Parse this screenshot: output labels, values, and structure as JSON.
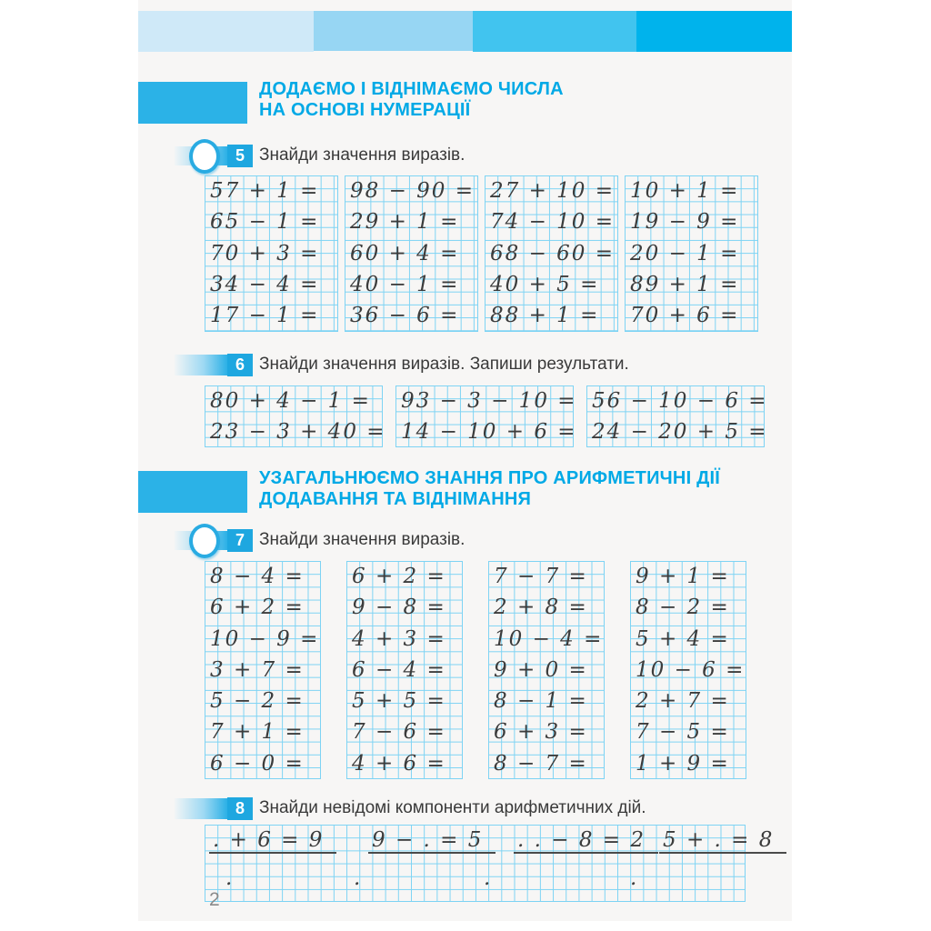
{
  "colors": {
    "accent": "#00a9e6",
    "marker_badge": "#1ea7e0",
    "grid_line": "#7dd3f4",
    "page_bg": "#f7f6f5",
    "header_bars": [
      "#cfe9f8",
      "#97d6f3",
      "#41c4ef",
      "#00b3ec"
    ]
  },
  "page": {
    "number": "2"
  },
  "sections": [
    {
      "title_line1": "ДОДАЄМО І ВІДНІМАЄМО ЧИСЛА",
      "title_line2": "НА ОСНОВІ НУМЕРАЦІЇ"
    },
    {
      "title_line1": "УЗАГАЛЬНЮЄМО ЗНАННЯ ПРО АРИФМЕТИЧНІ ДІЇ",
      "title_line2": "ДОДАВАННЯ ТА ВІДНІМАННЯ"
    }
  ],
  "exercises": [
    {
      "number": "5",
      "instruction": "Знайди значення виразів.",
      "columns": [
        [
          "57 + 1 =",
          "65 − 1 =",
          "70 + 3 =",
          "34 − 4 =",
          "17 − 1 ="
        ],
        [
          "98 − 90 =",
          "29 + 1 =",
          "60 + 4 =",
          "40 − 1 =",
          "36 − 6 ="
        ],
        [
          "27 + 10 =",
          "74 − 10 =",
          "68 − 60 =",
          "40 + 5 =",
          "88 + 1 ="
        ],
        [
          "10 + 1 =",
          "19 − 9 =",
          "20 − 1 =",
          "89 + 1 =",
          "70 + 6 ="
        ]
      ]
    },
    {
      "number": "6",
      "instruction": "Знайди значення виразів. Запиши результати.",
      "columns": [
        [
          "80 + 4 − 1 =",
          "23 − 3 + 40 ="
        ],
        [
          "93 − 3 − 10 =",
          "14 − 10 + 6 ="
        ],
        [
          "56 − 10 − 6 =",
          "24 − 20 + 5 ="
        ]
      ]
    },
    {
      "number": "7",
      "instruction": "Знайди значення виразів.",
      "columns": [
        [
          "8 − 4 =",
          "6 + 2 =",
          "10 − 9 =",
          "3 + 7 =",
          "5 − 2 =",
          "7 + 1 =",
          "6 − 0 ="
        ],
        [
          "6 + 2 =",
          "9 − 8 =",
          "4 + 3 =",
          "6 − 4 =",
          "5 + 5 =",
          "7 − 6 =",
          "4 + 6 ="
        ],
        [
          "7 − 7 =",
          "2 + 8 =",
          "10 − 4 =",
          "9 + 0 =",
          "8 − 1 =",
          "6 + 3 =",
          "8 − 7 ="
        ],
        [
          "9 + 1 =",
          "8 − 2 =",
          "5 + 4 =",
          "10 − 6 =",
          "2 + 7 =",
          "7 − 5 =",
          "1 + 9 ="
        ]
      ]
    },
    {
      "number": "8",
      "instruction": "Знайди невідомі компоненти арифметичних дій.",
      "problems": [
        ". + 6 = 9",
        "9 − . = 5",
        ". . − 8 = 2",
        "5 + . = 8"
      ],
      "answer_dots": [
        ".",
        ".",
        ".",
        "."
      ]
    }
  ]
}
